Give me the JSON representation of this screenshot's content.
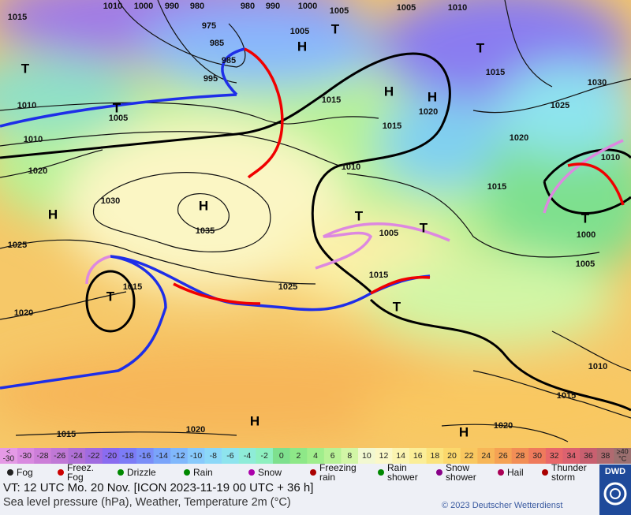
{
  "map": {
    "pressure_labels": [
      "1015",
      "1010",
      "1000",
      "990",
      "980",
      "980",
      "990",
      "1000",
      "1005",
      "1005",
      "1010",
      "975",
      "985",
      "985",
      "995",
      "1005",
      "1015",
      "1015",
      "1020",
      "1015",
      "1030",
      "1025",
      "1020",
      "1010",
      "1015",
      "1010",
      "1010",
      "1005",
      "1010",
      "1020",
      "1030",
      "1035",
      "1025",
      "1005",
      "1015",
      "1025",
      "1015",
      "1000",
      "1005",
      "1020",
      "1015",
      "1020",
      "1020",
      "1015",
      "1010"
    ],
    "system_labels": [
      "T",
      "T",
      "H",
      "H",
      "T",
      "H",
      "T",
      "H",
      "H",
      "T",
      "T",
      "T",
      "T",
      "T",
      "H",
      "H"
    ]
  },
  "temperature_scale": {
    "below_sign": "<",
    "below_value": "-30",
    "values": [
      -30,
      -28,
      -26,
      -24,
      -22,
      -20,
      -18,
      -16,
      -14,
      -12,
      -10,
      -8,
      -6,
      -4,
      -2,
      0,
      2,
      4,
      6,
      8,
      10,
      12,
      14,
      16,
      18,
      20,
      22,
      24,
      26,
      28,
      30,
      32,
      34,
      36,
      38
    ],
    "colors": [
      "#d98ae0",
      "#cc7ed8",
      "#c078d6",
      "#b070d6",
      "#a06be0",
      "#8a6cf0",
      "#7c7cf6",
      "#7a8ef8",
      "#7aa4fa",
      "#80b8fc",
      "#88cafc",
      "#8cd8f8",
      "#8ee4ee",
      "#8eecd8",
      "#8ef0c0",
      "#7ee08e",
      "#8ee888",
      "#a0ee8c",
      "#b8f296",
      "#d2f6a6",
      "#f2f8d2",
      "#fbf8c8",
      "#fbf4b0",
      "#fbee98",
      "#fbe47e",
      "#fbd86c",
      "#f9c860",
      "#f7b658",
      "#f5a254",
      "#f28e56",
      "#ef7a5c",
      "#e8686a",
      "#dc6270",
      "#c86070",
      "#b06a70"
    ],
    "below_color": "#e59ae6",
    "above_label": "≥40",
    "above_color": "#9c7070",
    "unit": "°C"
  },
  "weather_legend": [
    "Fog",
    "Freez.\nFog",
    "Drizzle",
    "Rain",
    "Snow",
    "Freezing\nrain",
    "Rain\nshower",
    "Snow\nshower",
    "Hail",
    "Thunder\nstorm"
  ],
  "footer": {
    "valid_time": "VT: 12 UTC Mo.  20 Nov. [ICON 2023-11-19  00 UTC + 36 h]",
    "description": "Sea level pressure (hPa), Weather, Temperature 2m (°C)",
    "copyright": "© 2023 Deutscher Wetterdienst",
    "logo": "DWD"
  }
}
